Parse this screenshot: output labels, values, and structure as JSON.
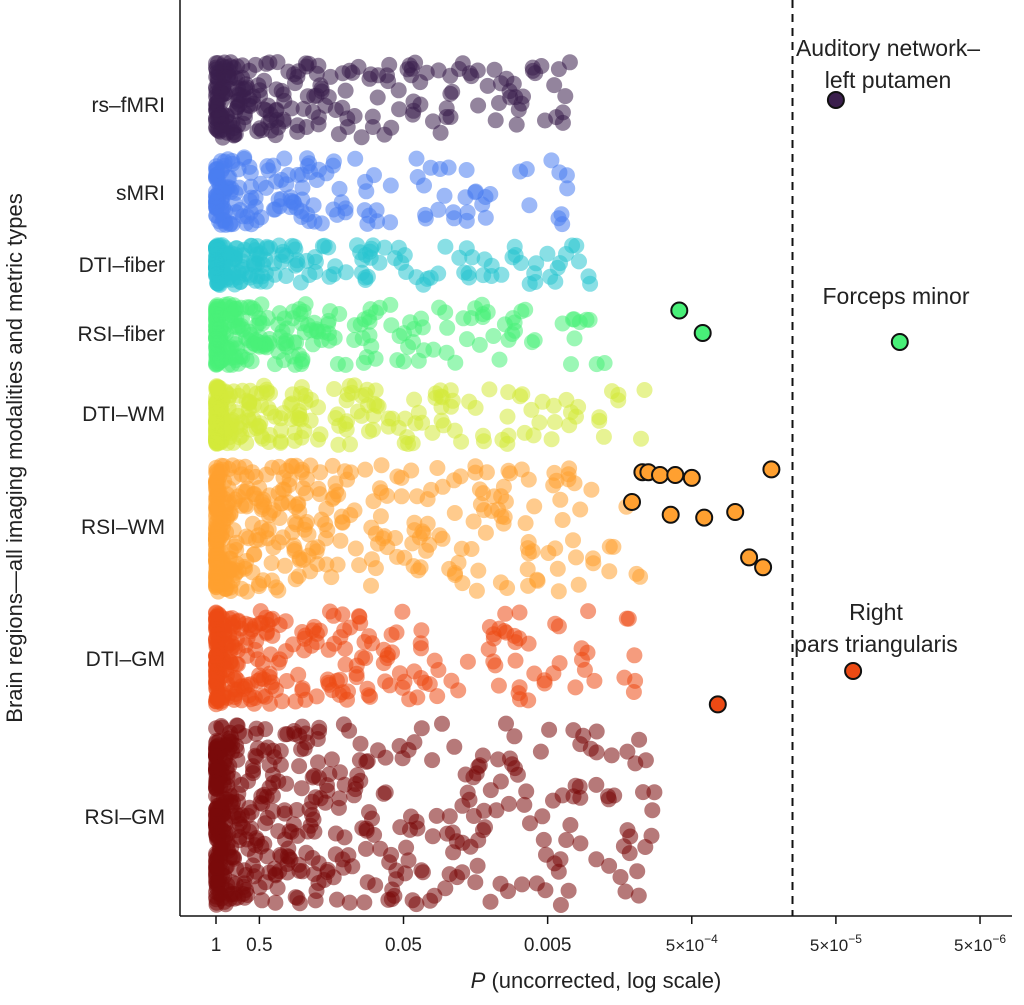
{
  "chart_data": {
    "type": "scatter",
    "xlabel_italic": "P",
    "xlabel_rest": " (uncorrected, log scale)",
    "ylabel": "Brain regions—all imaging modalities and metric types",
    "x_scale": "reversed log",
    "xlim": [
      1.0,
      3e-06
    ],
    "x_ticks": [
      {
        "value": 1,
        "label": "1"
      },
      {
        "value": 0.5,
        "label": "0.5"
      },
      {
        "value": 0.05,
        "label": "0.05"
      },
      {
        "value": 0.005,
        "label": "0.005"
      },
      {
        "value": 0.0005,
        "label": "5×10",
        "exp": "−4"
      },
      {
        "value": 5e-05,
        "label": "5×10",
        "exp": "−5"
      },
      {
        "value": 5e-06,
        "label": "5×10",
        "exp": "−6"
      }
    ],
    "threshold_p": 0.0001,
    "threshold_line": "dashed",
    "grid": false,
    "categories": [
      "rs–fMRI",
      "sMRI",
      "DTI–fiber",
      "RSI–fiber",
      "DTI–WM",
      "RSI–WM",
      "DTI–GM",
      "RSI–GM"
    ],
    "series": [
      {
        "category": "rs–fMRI",
        "color": "#3b1f4d",
        "n_points": 240,
        "min_p": 0.0035,
        "highlighted": [
          {
            "p": 5e-05,
            "label_lines": [
              "Auditory network–",
              "left putamen"
            ]
          }
        ]
      },
      {
        "category": "sMRI",
        "color": "#4a7ef0",
        "n_points": 180,
        "min_p": 0.003,
        "highlighted": []
      },
      {
        "category": "DTI–fiber",
        "color": "#28c5d0",
        "n_points": 200,
        "min_p": 0.0022,
        "highlighted": []
      },
      {
        "category": "RSI–fiber",
        "color": "#48f078",
        "n_points": 260,
        "min_p": 0.002,
        "highlighted": [
          {
            "p": 0.00061
          },
          {
            "p": 0.00042
          },
          {
            "p": 1.8e-05,
            "label_lines": [
              "Forceps minor"
            ]
          }
        ]
      },
      {
        "category": "DTI–WM",
        "color": "#d4ea3a",
        "n_points": 260,
        "min_p": 0.001,
        "highlighted": []
      },
      {
        "category": "RSI–WM",
        "color": "#ffa030",
        "n_points": 420,
        "min_p": 0.0011,
        "highlighted": [
          {
            "p": 0.0011
          },
          {
            "p": 0.001
          },
          {
            "p": 0.00083
          },
          {
            "p": 0.00065
          },
          {
            "p": 0.0005
          },
          {
            "p": 0.0013
          },
          {
            "p": 0.0007
          },
          {
            "p": 0.00041
          },
          {
            "p": 0.00025
          },
          {
            "p": 0.0002
          },
          {
            "p": 0.00016
          },
          {
            "p": 0.00014
          }
        ]
      },
      {
        "category": "DTI–GM",
        "color": "#ec4a14",
        "n_points": 300,
        "min_p": 0.0012,
        "highlighted": [
          {
            "p": 0.00033
          },
          {
            "p": 3.8e-05,
            "label_lines": [
              "Right",
              "pars triangularis"
            ]
          }
        ]
      },
      {
        "category": "RSI–GM",
        "color": "#7a0b0b",
        "n_points": 520,
        "min_p": 0.0009,
        "highlighted": []
      }
    ]
  }
}
